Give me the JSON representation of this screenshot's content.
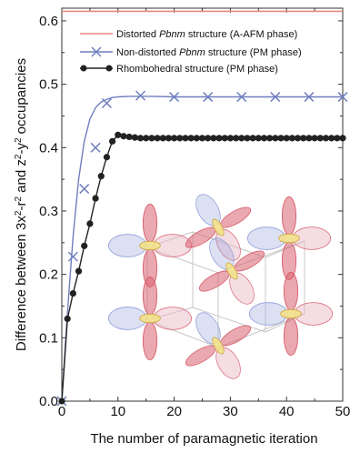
{
  "chart_data": {
    "type": "line",
    "xlabel": "The number of paramagnetic iteration",
    "ylabel_parts": {
      "before_first": "Difference between 3x",
      "first_sup": "2",
      "middle_1": "-r",
      "second_sup": "2",
      "middle_2": " and z",
      "third_sup": "2",
      "middle_3": "-y",
      "fourth_sup": "2",
      "after": " occupancies"
    },
    "xlim": [
      0,
      50
    ],
    "ylim": [
      0.0,
      0.62
    ],
    "xticks": [
      "0",
      "10",
      "20",
      "30",
      "40",
      "50"
    ],
    "yticks": [
      "0.0",
      "0.1",
      "0.2",
      "0.3",
      "0.4",
      "0.5",
      "0.6"
    ],
    "legend_position": "top-right",
    "series": [
      {
        "name": "Distorted Pbnm structure (A-AFM phase)",
        "legend_plain_before": "Distorted ",
        "legend_italic": "Pbnm",
        "legend_plain_after": " structure (A-AFM phase)",
        "style": "horizontal-line",
        "color": "#e8877f",
        "marker": "none",
        "y": 0.615
      },
      {
        "name": "Non-distorted Pbnm structure (PM phase)",
        "legend_plain_before": "Non-distorted ",
        "legend_italic": "Pbnm",
        "legend_plain_after": " structure (PM phase)",
        "style": "line-marker",
        "color": "#6f7fc0",
        "marker": "x",
        "x": [
          0,
          2,
          4,
          6,
          8,
          14,
          20,
          26,
          32,
          38,
          44,
          50
        ],
        "y": [
          0.0,
          0.228,
          0.335,
          0.4,
          0.47,
          0.482,
          0.48,
          0.48,
          0.48,
          0.48,
          0.48,
          0.48
        ],
        "curve_x": [
          0,
          1,
          2,
          3,
          4,
          5,
          6,
          7,
          8,
          9,
          10,
          12,
          16,
          20,
          30,
          50
        ],
        "curve_y": [
          0.0,
          0.14,
          0.26,
          0.35,
          0.41,
          0.445,
          0.463,
          0.472,
          0.476,
          0.479,
          0.48,
          0.481,
          0.481,
          0.48,
          0.48,
          0.48
        ]
      },
      {
        "name": "Rhombohedral structure (PM phase)",
        "legend_plain_before": "Rhombohedral structure (PM phase)",
        "legend_italic": "",
        "legend_plain_after": "",
        "style": "line-marker",
        "color": "#222222",
        "marker": "circle",
        "x": [
          0,
          1,
          2,
          3,
          4,
          5,
          6,
          7,
          8,
          9,
          10,
          11,
          12,
          13,
          14,
          15,
          16,
          17,
          18,
          19,
          20,
          21,
          22,
          23,
          24,
          25,
          26,
          27,
          28,
          29,
          30,
          31,
          32,
          33,
          34,
          35,
          36,
          37,
          38,
          39,
          40,
          41,
          42,
          43,
          44,
          45,
          46,
          47,
          48,
          49,
          50
        ],
        "y": [
          0.0,
          0.13,
          0.17,
          0.205,
          0.245,
          0.28,
          0.32,
          0.355,
          0.385,
          0.41,
          0.42,
          0.418,
          0.417,
          0.416,
          0.415,
          0.415,
          0.415,
          0.415,
          0.415,
          0.415,
          0.415,
          0.415,
          0.415,
          0.415,
          0.415,
          0.415,
          0.415,
          0.415,
          0.415,
          0.415,
          0.415,
          0.415,
          0.415,
          0.415,
          0.415,
          0.415,
          0.415,
          0.415,
          0.415,
          0.415,
          0.415,
          0.415,
          0.415,
          0.415,
          0.415,
          0.415,
          0.415,
          0.415,
          0.415,
          0.415,
          0.415
        ]
      }
    ],
    "inset": {
      "description_type": "orbital-ordering-illustration",
      "colors": [
        "#d9606f",
        "#9aa6dd",
        "#e8b3c4",
        "#f2e08a"
      ],
      "lobe_angles": [
        0,
        90,
        180,
        270,
        0,
        90,
        180,
        270,
        45
      ]
    }
  }
}
